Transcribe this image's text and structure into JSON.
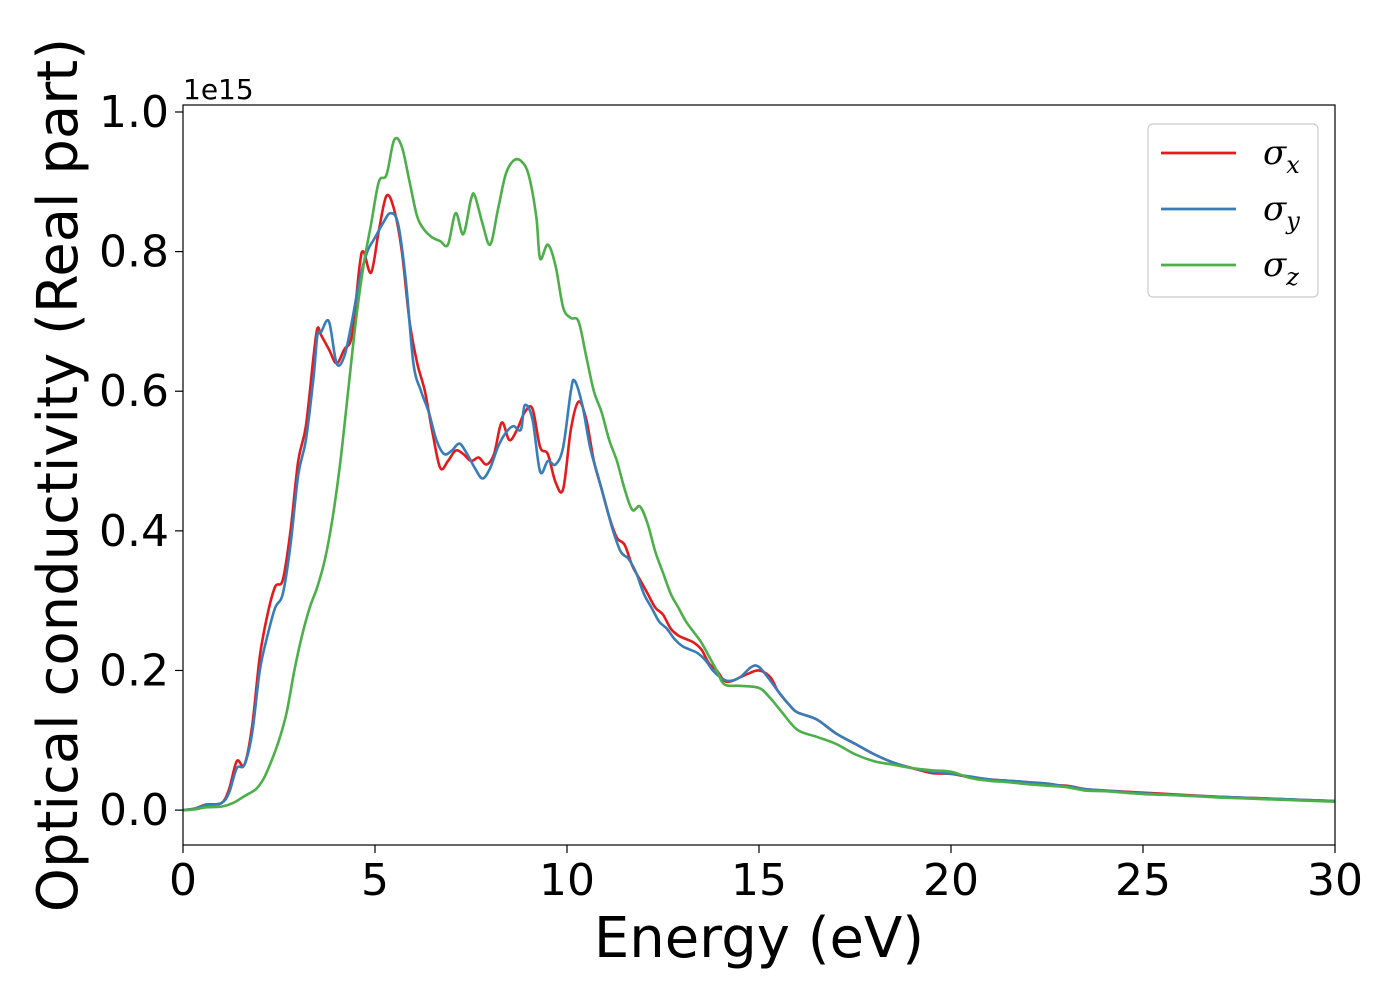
{
  "chart_data": {
    "type": "line",
    "title": "",
    "xlabel": "Energy (eV)",
    "ylabel": "Optical conductivity (Real part)",
    "y_offset_label": "1e15",
    "xlim": [
      0,
      30
    ],
    "ylim": [
      -0.05,
      1.01
    ],
    "xticks": [
      0,
      5,
      10,
      15,
      20,
      25,
      30
    ],
    "yticks": [
      0.0,
      0.2,
      0.4,
      0.6,
      0.8,
      1.0
    ],
    "xtick_labels": [
      "0",
      "5",
      "10",
      "15",
      "20",
      "25",
      "30"
    ],
    "ytick_labels": [
      "0.0",
      "0.2",
      "0.4",
      "0.6",
      "0.8",
      "1.0"
    ],
    "grid": false,
    "legend_position": "top-right",
    "series": [
      {
        "name": "σx",
        "symbol": "σ",
        "subscript": "x",
        "color": "#e41a1c",
        "points": [
          [
            0,
            0
          ],
          [
            0.3,
            0.002
          ],
          [
            0.6,
            0.008
          ],
          [
            1.0,
            0.01
          ],
          [
            1.2,
            0.03
          ],
          [
            1.4,
            0.07
          ],
          [
            1.6,
            0.065
          ],
          [
            1.8,
            0.12
          ],
          [
            2.0,
            0.22
          ],
          [
            2.2,
            0.28
          ],
          [
            2.4,
            0.32
          ],
          [
            2.6,
            0.33
          ],
          [
            2.8,
            0.4
          ],
          [
            3.0,
            0.5
          ],
          [
            3.2,
            0.55
          ],
          [
            3.4,
            0.65
          ],
          [
            3.5,
            0.69
          ],
          [
            3.6,
            0.68
          ],
          [
            3.8,
            0.66
          ],
          [
            4.0,
            0.64
          ],
          [
            4.2,
            0.66
          ],
          [
            4.4,
            0.68
          ],
          [
            4.6,
            0.78
          ],
          [
            4.7,
            0.8
          ],
          [
            4.9,
            0.77
          ],
          [
            5.1,
            0.83
          ],
          [
            5.3,
            0.88
          ],
          [
            5.5,
            0.86
          ],
          [
            5.7,
            0.8
          ],
          [
            5.9,
            0.7
          ],
          [
            6.1,
            0.64
          ],
          [
            6.3,
            0.6
          ],
          [
            6.5,
            0.54
          ],
          [
            6.7,
            0.49
          ],
          [
            6.9,
            0.5
          ],
          [
            7.1,
            0.515
          ],
          [
            7.3,
            0.51
          ],
          [
            7.5,
            0.5
          ],
          [
            7.7,
            0.505
          ],
          [
            7.9,
            0.495
          ],
          [
            8.1,
            0.51
          ],
          [
            8.3,
            0.555
          ],
          [
            8.5,
            0.53
          ],
          [
            8.7,
            0.545
          ],
          [
            8.9,
            0.57
          ],
          [
            9.1,
            0.575
          ],
          [
            9.3,
            0.52
          ],
          [
            9.5,
            0.51
          ],
          [
            9.7,
            0.47
          ],
          [
            9.9,
            0.46
          ],
          [
            10.1,
            0.545
          ],
          [
            10.3,
            0.585
          ],
          [
            10.5,
            0.56
          ],
          [
            10.7,
            0.5
          ],
          [
            10.9,
            0.46
          ],
          [
            11.1,
            0.42
          ],
          [
            11.3,
            0.39
          ],
          [
            11.5,
            0.38
          ],
          [
            11.7,
            0.35
          ],
          [
            11.9,
            0.33
          ],
          [
            12.1,
            0.31
          ],
          [
            12.3,
            0.29
          ],
          [
            12.5,
            0.28
          ],
          [
            12.7,
            0.26
          ],
          [
            12.9,
            0.25
          ],
          [
            13.1,
            0.245
          ],
          [
            13.3,
            0.24
          ],
          [
            13.5,
            0.23
          ],
          [
            13.7,
            0.21
          ],
          [
            13.9,
            0.2
          ],
          [
            14.1,
            0.185
          ],
          [
            14.3,
            0.185
          ],
          [
            14.5,
            0.19
          ],
          [
            14.7,
            0.195
          ],
          [
            15.0,
            0.2
          ],
          [
            15.3,
            0.19
          ],
          [
            15.5,
            0.17
          ],
          [
            15.8,
            0.15
          ],
          [
            16.0,
            0.14
          ],
          [
            16.5,
            0.13
          ],
          [
            17.0,
            0.11
          ],
          [
            17.5,
            0.095
          ],
          [
            18.0,
            0.08
          ],
          [
            18.5,
            0.068
          ],
          [
            19.0,
            0.06
          ],
          [
            19.5,
            0.053
          ],
          [
            20.0,
            0.052
          ],
          [
            20.5,
            0.047
          ],
          [
            21.0,
            0.044
          ],
          [
            21.5,
            0.042
          ],
          [
            22.0,
            0.04
          ],
          [
            22.5,
            0.036
          ],
          [
            23.0,
            0.035
          ],
          [
            23.5,
            0.03
          ],
          [
            24.0,
            0.028
          ],
          [
            25.0,
            0.025
          ],
          [
            26.0,
            0.022
          ],
          [
            27.0,
            0.019
          ],
          [
            28.0,
            0.017
          ],
          [
            29.0,
            0.015
          ],
          [
            30.0,
            0.013
          ]
        ]
      },
      {
        "name": "σy",
        "symbol": "σ",
        "subscript": "y",
        "color": "#377eb8",
        "points": [
          [
            0,
            0
          ],
          [
            0.3,
            0.002
          ],
          [
            0.6,
            0.007
          ],
          [
            1.0,
            0.01
          ],
          [
            1.2,
            0.025
          ],
          [
            1.4,
            0.06
          ],
          [
            1.6,
            0.065
          ],
          [
            1.8,
            0.11
          ],
          [
            2.0,
            0.2
          ],
          [
            2.2,
            0.25
          ],
          [
            2.4,
            0.29
          ],
          [
            2.6,
            0.31
          ],
          [
            2.8,
            0.38
          ],
          [
            3.0,
            0.48
          ],
          [
            3.2,
            0.53
          ],
          [
            3.4,
            0.62
          ],
          [
            3.5,
            0.68
          ],
          [
            3.6,
            0.685
          ],
          [
            3.8,
            0.7
          ],
          [
            4.0,
            0.64
          ],
          [
            4.2,
            0.65
          ],
          [
            4.4,
            0.7
          ],
          [
            4.6,
            0.76
          ],
          [
            4.8,
            0.8
          ],
          [
            5.0,
            0.82
          ],
          [
            5.2,
            0.84
          ],
          [
            5.4,
            0.855
          ],
          [
            5.6,
            0.84
          ],
          [
            5.8,
            0.76
          ],
          [
            6.0,
            0.64
          ],
          [
            6.2,
            0.6
          ],
          [
            6.4,
            0.57
          ],
          [
            6.6,
            0.53
          ],
          [
            6.8,
            0.51
          ],
          [
            7.0,
            0.515
          ],
          [
            7.2,
            0.525
          ],
          [
            7.4,
            0.51
          ],
          [
            7.6,
            0.49
          ],
          [
            7.8,
            0.475
          ],
          [
            8.0,
            0.49
          ],
          [
            8.2,
            0.52
          ],
          [
            8.4,
            0.54
          ],
          [
            8.6,
            0.55
          ],
          [
            8.8,
            0.545
          ],
          [
            8.9,
            0.58
          ],
          [
            9.1,
            0.56
          ],
          [
            9.3,
            0.485
          ],
          [
            9.5,
            0.5
          ],
          [
            9.7,
            0.495
          ],
          [
            9.9,
            0.52
          ],
          [
            10.1,
            0.6
          ],
          [
            10.2,
            0.615
          ],
          [
            10.4,
            0.58
          ],
          [
            10.6,
            0.52
          ],
          [
            10.8,
            0.48
          ],
          [
            11.0,
            0.44
          ],
          [
            11.2,
            0.4
          ],
          [
            11.4,
            0.37
          ],
          [
            11.6,
            0.36
          ],
          [
            11.8,
            0.34
          ],
          [
            12.0,
            0.31
          ],
          [
            12.2,
            0.29
          ],
          [
            12.4,
            0.27
          ],
          [
            12.6,
            0.26
          ],
          [
            12.8,
            0.245
          ],
          [
            13.0,
            0.235
          ],
          [
            13.2,
            0.23
          ],
          [
            13.4,
            0.225
          ],
          [
            13.6,
            0.215
          ],
          [
            13.8,
            0.2
          ],
          [
            14.0,
            0.19
          ],
          [
            14.2,
            0.185
          ],
          [
            14.5,
            0.19
          ],
          [
            14.8,
            0.205
          ],
          [
            15.0,
            0.205
          ],
          [
            15.3,
            0.185
          ],
          [
            15.5,
            0.17
          ],
          [
            15.8,
            0.15
          ],
          [
            16.0,
            0.14
          ],
          [
            16.5,
            0.13
          ],
          [
            17.0,
            0.11
          ],
          [
            17.5,
            0.095
          ],
          [
            18.0,
            0.08
          ],
          [
            18.5,
            0.068
          ],
          [
            19.0,
            0.06
          ],
          [
            19.5,
            0.055
          ],
          [
            20.0,
            0.052
          ],
          [
            20.5,
            0.048
          ],
          [
            21.0,
            0.044
          ],
          [
            21.5,
            0.042
          ],
          [
            22.0,
            0.04
          ],
          [
            22.5,
            0.038
          ],
          [
            23.0,
            0.034
          ],
          [
            23.5,
            0.03
          ],
          [
            24.0,
            0.028
          ],
          [
            25.0,
            0.024
          ],
          [
            26.0,
            0.021
          ],
          [
            27.0,
            0.019
          ],
          [
            28.0,
            0.017
          ],
          [
            29.0,
            0.015
          ],
          [
            30.0,
            0.013
          ]
        ]
      },
      {
        "name": "σz",
        "symbol": "σ",
        "subscript": "z",
        "color": "#4daf4a",
        "points": [
          [
            0,
            0
          ],
          [
            0.3,
            0.001
          ],
          [
            0.6,
            0.004
          ],
          [
            1.0,
            0.005
          ],
          [
            1.3,
            0.01
          ],
          [
            1.6,
            0.02
          ],
          [
            1.9,
            0.03
          ],
          [
            2.1,
            0.045
          ],
          [
            2.3,
            0.07
          ],
          [
            2.5,
            0.1
          ],
          [
            2.7,
            0.14
          ],
          [
            2.9,
            0.2
          ],
          [
            3.1,
            0.25
          ],
          [
            3.3,
            0.29
          ],
          [
            3.5,
            0.32
          ],
          [
            3.7,
            0.36
          ],
          [
            3.9,
            0.42
          ],
          [
            4.1,
            0.5
          ],
          [
            4.3,
            0.6
          ],
          [
            4.5,
            0.7
          ],
          [
            4.7,
            0.78
          ],
          [
            4.9,
            0.84
          ],
          [
            5.1,
            0.9
          ],
          [
            5.3,
            0.91
          ],
          [
            5.5,
            0.96
          ],
          [
            5.7,
            0.95
          ],
          [
            5.9,
            0.9
          ],
          [
            6.1,
            0.85
          ],
          [
            6.3,
            0.83
          ],
          [
            6.5,
            0.82
          ],
          [
            6.7,
            0.815
          ],
          [
            6.9,
            0.81
          ],
          [
            7.1,
            0.855
          ],
          [
            7.3,
            0.825
          ],
          [
            7.5,
            0.875
          ],
          [
            7.6,
            0.88
          ],
          [
            7.8,
            0.84
          ],
          [
            8.0,
            0.81
          ],
          [
            8.2,
            0.86
          ],
          [
            8.4,
            0.91
          ],
          [
            8.6,
            0.93
          ],
          [
            8.8,
            0.93
          ],
          [
            9.0,
            0.91
          ],
          [
            9.2,
            0.85
          ],
          [
            9.3,
            0.79
          ],
          [
            9.5,
            0.81
          ],
          [
            9.7,
            0.78
          ],
          [
            9.9,
            0.72
          ],
          [
            10.1,
            0.705
          ],
          [
            10.3,
            0.7
          ],
          [
            10.5,
            0.65
          ],
          [
            10.7,
            0.6
          ],
          [
            10.9,
            0.57
          ],
          [
            11.1,
            0.53
          ],
          [
            11.3,
            0.5
          ],
          [
            11.5,
            0.46
          ],
          [
            11.7,
            0.43
          ],
          [
            11.9,
            0.435
          ],
          [
            12.1,
            0.41
          ],
          [
            12.3,
            0.37
          ],
          [
            12.5,
            0.34
          ],
          [
            12.7,
            0.31
          ],
          [
            12.9,
            0.29
          ],
          [
            13.1,
            0.27
          ],
          [
            13.3,
            0.255
          ],
          [
            13.5,
            0.24
          ],
          [
            13.7,
            0.22
          ],
          [
            13.9,
            0.2
          ],
          [
            14.1,
            0.18
          ],
          [
            14.5,
            0.178
          ],
          [
            15.0,
            0.175
          ],
          [
            15.3,
            0.16
          ],
          [
            15.6,
            0.14
          ],
          [
            16.0,
            0.115
          ],
          [
            16.5,
            0.105
          ],
          [
            17.0,
            0.095
          ],
          [
            17.5,
            0.08
          ],
          [
            18.0,
            0.07
          ],
          [
            18.5,
            0.065
          ],
          [
            19.0,
            0.06
          ],
          [
            19.5,
            0.057
          ],
          [
            20.0,
            0.055
          ],
          [
            20.5,
            0.046
          ],
          [
            21.0,
            0.042
          ],
          [
            21.5,
            0.04
          ],
          [
            22.0,
            0.037
          ],
          [
            22.5,
            0.035
          ],
          [
            23.0,
            0.033
          ],
          [
            23.5,
            0.028
          ],
          [
            24.0,
            0.027
          ],
          [
            25.0,
            0.023
          ],
          [
            26.0,
            0.021
          ],
          [
            27.0,
            0.018
          ],
          [
            28.0,
            0.016
          ],
          [
            29.0,
            0.014
          ],
          [
            30.0,
            0.012
          ]
        ]
      }
    ]
  }
}
